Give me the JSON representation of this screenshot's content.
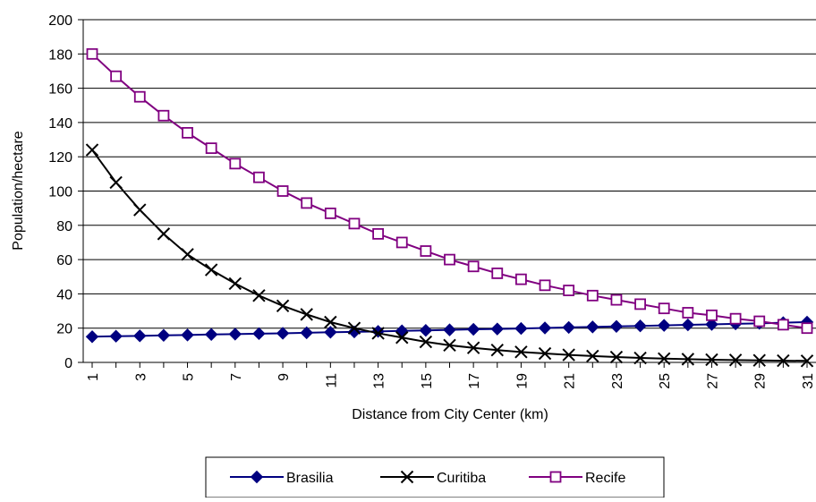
{
  "chart_data": {
    "type": "line",
    "title": "",
    "xlabel": "Distance from City Center (km)",
    "ylabel": "Population/hectare",
    "ylim": [
      0,
      200
    ],
    "yticks": [
      0,
      20,
      40,
      60,
      80,
      100,
      120,
      140,
      160,
      180,
      200
    ],
    "x": [
      1,
      2,
      3,
      4,
      5,
      6,
      7,
      8,
      9,
      10,
      11,
      12,
      13,
      14,
      15,
      16,
      17,
      18,
      19,
      20,
      21,
      22,
      23,
      24,
      25,
      26,
      27,
      28,
      29,
      30,
      31
    ],
    "xtick_labels": [
      1,
      3,
      5,
      7,
      9,
      11,
      13,
      15,
      17,
      19,
      21,
      23,
      25,
      27,
      29,
      31
    ],
    "grid": "horizontal",
    "legend_position": "bottom",
    "colors": {
      "brasilia": "#000080",
      "curitiba": "#000000",
      "recife": "#800080",
      "grid": "#000000"
    },
    "series": [
      {
        "name": "Brasilia",
        "marker": "diamond",
        "values": [
          15.0,
          15.3,
          15.5,
          15.8,
          16.0,
          16.3,
          16.5,
          16.8,
          17.0,
          17.3,
          17.6,
          17.8,
          18.1,
          18.4,
          18.7,
          19.0,
          19.3,
          19.5,
          19.8,
          20.1,
          20.4,
          20.7,
          21.0,
          21.3,
          21.6,
          21.9,
          22.2,
          22.5,
          22.8,
          23.2,
          23.5
        ]
      },
      {
        "name": "Curitiba",
        "marker": "x",
        "values": [
          124,
          105,
          89,
          75,
          63,
          54,
          46,
          39,
          33,
          28,
          23.5,
          20,
          17,
          14.5,
          12,
          10,
          8.5,
          7.2,
          6.1,
          5.2,
          4.4,
          3.7,
          3.1,
          2.6,
          2.2,
          1.9,
          1.6,
          1.4,
          1.2,
          1.0,
          0.9
        ]
      },
      {
        "name": "Recife",
        "marker": "square",
        "values": [
          180,
          167,
          155,
          144,
          134,
          125,
          116,
          108,
          100,
          93,
          87,
          81,
          75,
          70,
          65,
          60,
          56,
          52,
          48.5,
          45,
          42,
          39,
          36.5,
          34,
          31.5,
          29,
          27.5,
          25.5,
          24,
          22,
          20
        ]
      }
    ]
  }
}
